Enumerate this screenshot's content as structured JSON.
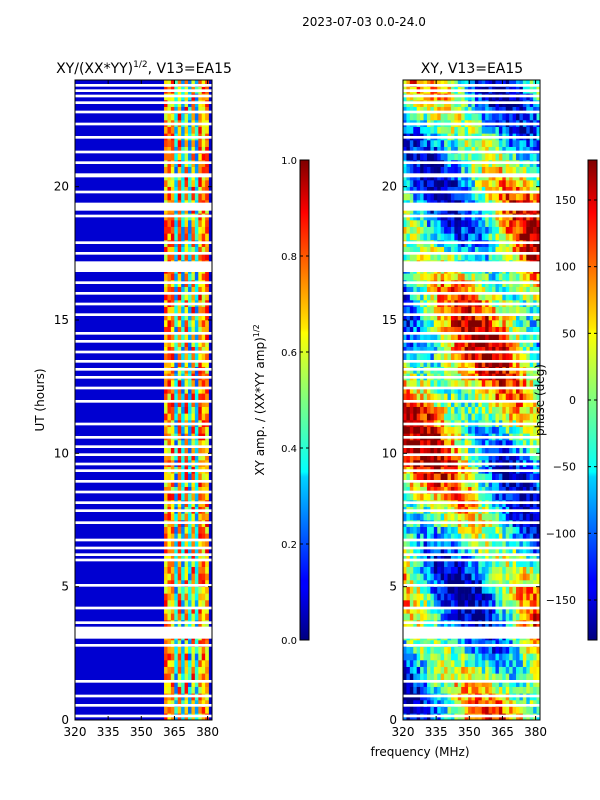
{
  "figure": {
    "suptitle": "2023-07-03 0.0-24.0",
    "xlabel": "frequency (MHz)"
  },
  "chart_data": [
    {
      "type": "heatmap",
      "title_main": "XY/(XX*YY)",
      "title_sup": "1/2",
      "title_rest": ", V13=EA15",
      "ylabel": "UT (hours)",
      "xlim": [
        320,
        382
      ],
      "ylim": [
        0,
        24
      ],
      "xticks": [
        "320",
        "335",
        "350",
        "365",
        "380"
      ],
      "xtick_values": [
        320,
        335,
        350,
        365,
        380
      ],
      "yticks": [
        "0",
        "5",
        "10",
        "15",
        "20"
      ],
      "ytick_values": [
        0,
        5,
        10,
        15,
        20
      ],
      "signal_band_mhz": [
        360,
        380
      ],
      "colorbar": {
        "label_main": "XY amp. / (XX*YY amp)",
        "label_sup": "1/2",
        "range": [
          0.0,
          1.0
        ],
        "ticks": [
          "0.0",
          "0.2",
          "0.4",
          "0.6",
          "0.8",
          "1.0"
        ],
        "tick_values": [
          0.0,
          0.2,
          0.4,
          0.6,
          0.8,
          1.0
        ]
      }
    },
    {
      "type": "heatmap",
      "title": "XY, V13=EA15",
      "xlim": [
        320,
        382
      ],
      "ylim": [
        0,
        24
      ],
      "xticks": [
        "320",
        "335",
        "350",
        "365",
        "380"
      ],
      "xtick_values": [
        320,
        335,
        350,
        365,
        380
      ],
      "yticks": [
        "0",
        "5",
        "10",
        "15",
        "20"
      ],
      "ytick_values": [
        0,
        5,
        10,
        15,
        20
      ],
      "colorbar": {
        "label": "phase (deg)",
        "range": [
          -180,
          180
        ],
        "ticks": [
          "−150",
          "−100",
          "−50",
          "0",
          "50",
          "100",
          "150"
        ],
        "tick_values": [
          -150,
          -100,
          -50,
          0,
          50,
          100,
          150
        ]
      }
    }
  ],
  "flagged_gaps_hours": [
    [
      0.1,
      0.2
    ],
    [
      0.5,
      0.6
    ],
    [
      0.85,
      0.95
    ],
    [
      1.4,
      1.5
    ],
    [
      2.75,
      2.85
    ],
    [
      3.05,
      3.5
    ],
    [
      3.6,
      3.7
    ],
    [
      4.15,
      4.25
    ],
    [
      5.0,
      5.1
    ],
    [
      5.95,
      6.05
    ],
    [
      6.15,
      6.25
    ],
    [
      6.4,
      6.5
    ],
    [
      6.7,
      6.8
    ],
    [
      7.35,
      7.45
    ],
    [
      7.8,
      7.9
    ],
    [
      8.1,
      8.2
    ],
    [
      8.5,
      8.6
    ],
    [
      8.9,
      9.0
    ],
    [
      9.3,
      9.4
    ],
    [
      9.55,
      9.65
    ],
    [
      9.9,
      10.0
    ],
    [
      10.2,
      10.3
    ],
    [
      10.55,
      10.65
    ],
    [
      11.05,
      11.15
    ],
    [
      11.9,
      12.0
    ],
    [
      12.4,
      12.5
    ],
    [
      12.8,
      12.9
    ],
    [
      13.1,
      13.2
    ],
    [
      13.4,
      13.5
    ],
    [
      13.75,
      13.85
    ],
    [
      14.15,
      14.25
    ],
    [
      14.45,
      14.55
    ],
    [
      15.15,
      15.25
    ],
    [
      15.55,
      15.65
    ],
    [
      15.95,
      16.05
    ],
    [
      16.35,
      16.45
    ],
    [
      16.8,
      17.2
    ],
    [
      17.45,
      17.55
    ],
    [
      17.85,
      17.95
    ],
    [
      18.85,
      18.95
    ],
    [
      19.1,
      19.4
    ],
    [
      19.75,
      19.85
    ],
    [
      20.35,
      20.5
    ],
    [
      20.85,
      20.95
    ],
    [
      21.25,
      21.35
    ],
    [
      21.8,
      21.9
    ],
    [
      22.3,
      22.4
    ],
    [
      22.75,
      22.85
    ],
    [
      23.1,
      23.2
    ],
    [
      23.35,
      23.45
    ],
    [
      23.55,
      23.65
    ],
    [
      23.75,
      23.85
    ]
  ]
}
